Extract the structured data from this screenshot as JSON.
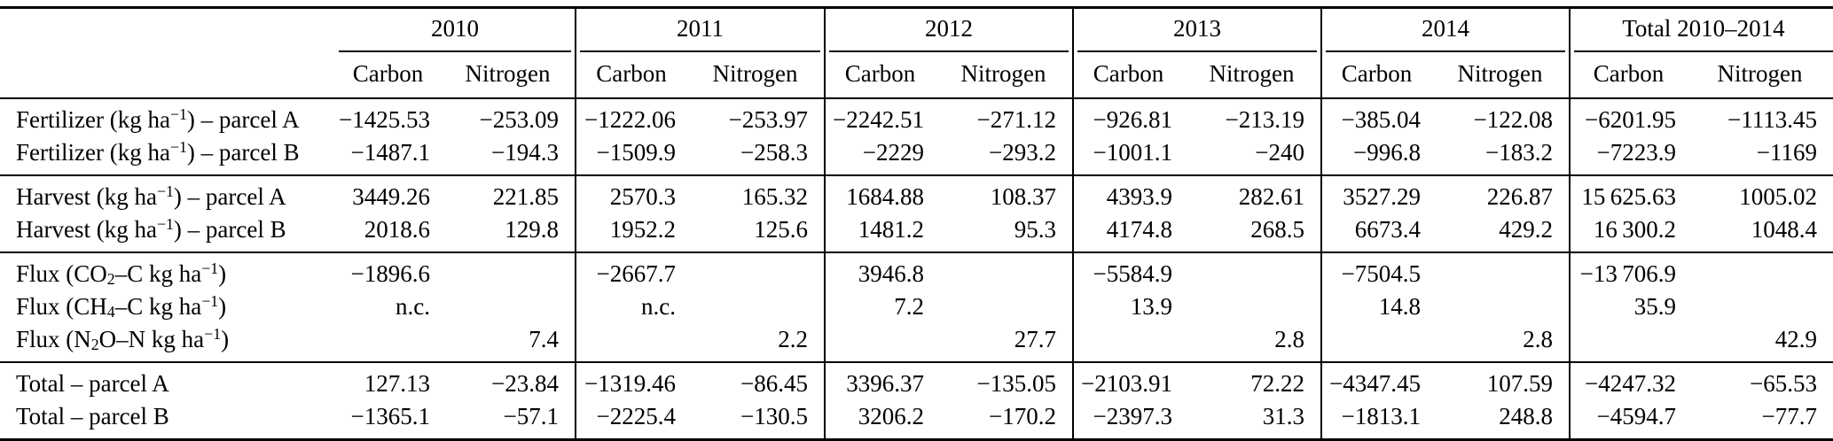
{
  "table": {
    "col_groups": [
      {
        "label": "2010"
      },
      {
        "label": "2011"
      },
      {
        "label": "2012"
      },
      {
        "label": "2013"
      },
      {
        "label": "2014"
      },
      {
        "label": "Total 2010–2014"
      }
    ],
    "sub_headers": [
      "Carbon",
      "Nitrogen"
    ],
    "row_groups": [
      {
        "rows": [
          {
            "label": "Fertilizer (kg ha^{−1}) – parcel A",
            "values": [
              "−1425.53",
              "−253.09",
              "−1222.06",
              "−253.97",
              "−2242.51",
              "−271.12",
              "−926.81",
              "−213.19",
              "−385.04",
              "−122.08",
              "−6201.95",
              "−1113.45"
            ]
          },
          {
            "label": "Fertilizer (kg ha^{−1}) – parcel B",
            "values": [
              "−1487.1",
              "−194.3",
              "−1509.9",
              "−258.3",
              "−2229",
              "−293.2",
              "−1001.1",
              "−240",
              "−996.8",
              "−183.2",
              "−7223.9",
              "−1169"
            ]
          }
        ]
      },
      {
        "rows": [
          {
            "label": "Harvest (kg ha^{−1}) – parcel A",
            "values": [
              "3449.26",
              "221.85",
              "2570.3",
              "165.32",
              "1684.88",
              "108.37",
              "4393.9",
              "282.61",
              "3527.29",
              "226.87",
              "15 625.63",
              "1005.02"
            ]
          },
          {
            "label": "Harvest (kg ha^{−1}) – parcel B",
            "values": [
              "2018.6",
              "129.8",
              "1952.2",
              "125.6",
              "1481.2",
              "95.3",
              "4174.8",
              "268.5",
              "6673.4",
              "429.2",
              "16 300.2",
              "1048.4"
            ]
          }
        ]
      },
      {
        "rows": [
          {
            "label": "Flux (CO_{2}–C kg ha^{−1})",
            "values": [
              "−1896.6",
              "",
              "−2667.7",
              "",
              "3946.8",
              "",
              "−5584.9",
              "",
              "−7504.5",
              "",
              "−13 706.9",
              ""
            ]
          },
          {
            "label": "Flux (CH_{4}–C kg ha^{−1})",
            "values": [
              "n.c.",
              "",
              "n.c.",
              "",
              "7.2",
              "",
              "13.9",
              "",
              "14.8",
              "",
              "35.9",
              ""
            ]
          },
          {
            "label": "Flux (N_{2}O–N kg ha^{−1})",
            "values": [
              "",
              "7.4",
              "",
              "2.2",
              "",
              "27.7",
              "",
              "2.8",
              "",
              "2.8",
              "",
              "42.9"
            ]
          }
        ]
      },
      {
        "rows": [
          {
            "label": "Total – parcel A",
            "values": [
              "127.13",
              "−23.84",
              "−1319.46",
              "−86.45",
              "3396.37",
              "−135.05",
              "−2103.91",
              "72.22",
              "−4347.45",
              "107.59",
              "−4247.32",
              "−65.53"
            ]
          },
          {
            "label": "Total – parcel B",
            "values": [
              "−1365.1",
              "−57.1",
              "−2225.4",
              "−130.5",
              "3206.2",
              "−170.2",
              "−2397.3",
              "31.3",
              "−1813.1",
              "248.8",
              "−4594.7",
              "−77.7"
            ]
          }
        ]
      }
    ]
  }
}
